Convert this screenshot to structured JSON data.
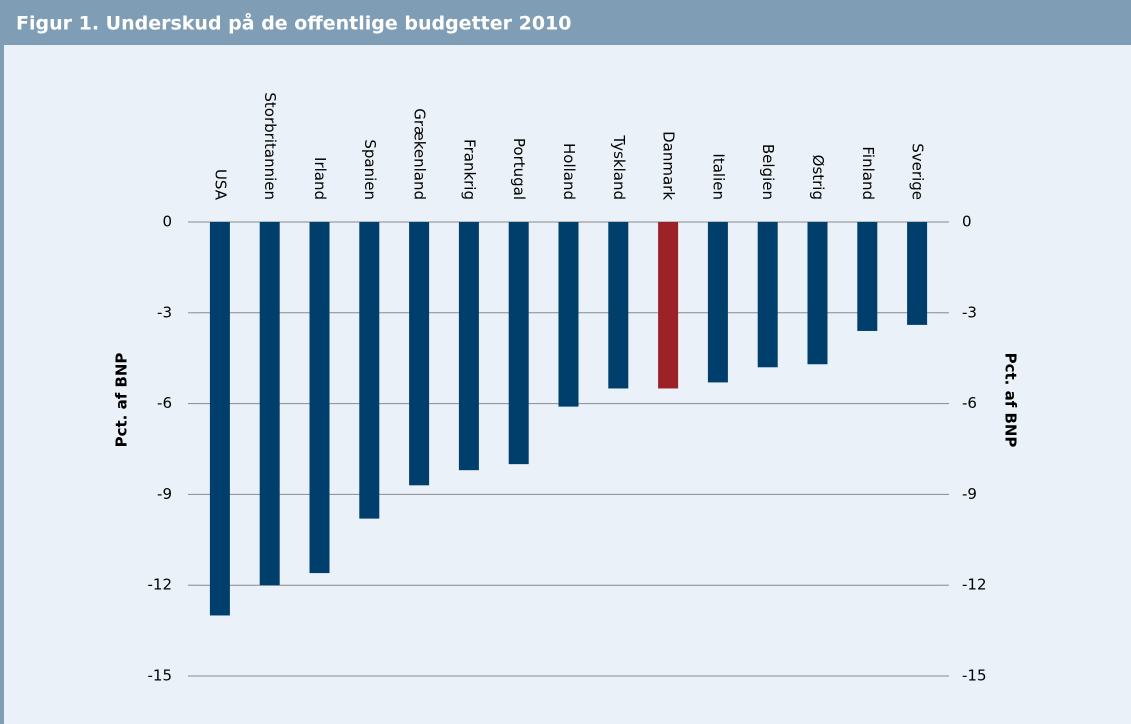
{
  "chart_data": {
    "type": "bar",
    "title": "Figur 1. Underskud på de offentlige budgetter 2010",
    "ylabel": "Pct. af BNP",
    "y2label": "Pct. af BNP",
    "categories": [
      "USA",
      "Storbritannien",
      "Irland",
      "Spanien",
      "Grækenland",
      "Frankrig",
      "Portugal",
      "Holland",
      "Tyskland",
      "Danmark",
      "Italien",
      "Belgien",
      "Østrig",
      "Finland",
      "Sverige"
    ],
    "values": [
      -13.0,
      -12.0,
      -11.6,
      -9.8,
      -8.7,
      -8.2,
      -8.0,
      -6.1,
      -5.5,
      -5.5,
      -5.3,
      -4.8,
      -4.7,
      -3.6,
      -3.4
    ],
    "colors": [
      "#003f6b",
      "#003f6b",
      "#003f6b",
      "#003f6b",
      "#003f6b",
      "#003f6b",
      "#003f6b",
      "#003f6b",
      "#003f6b",
      "#9b2327",
      "#003f6b",
      "#003f6b",
      "#003f6b",
      "#003f6b",
      "#003f6b"
    ],
    "ylim": [
      -15,
      0
    ],
    "yticks": [
      0,
      -3,
      -6,
      -9,
      -12,
      -15
    ],
    "y2lim": [
      -15,
      0
    ],
    "y2ticks": [
      0,
      -3,
      -6,
      -9,
      -12,
      -15
    ],
    "grid": true
  }
}
